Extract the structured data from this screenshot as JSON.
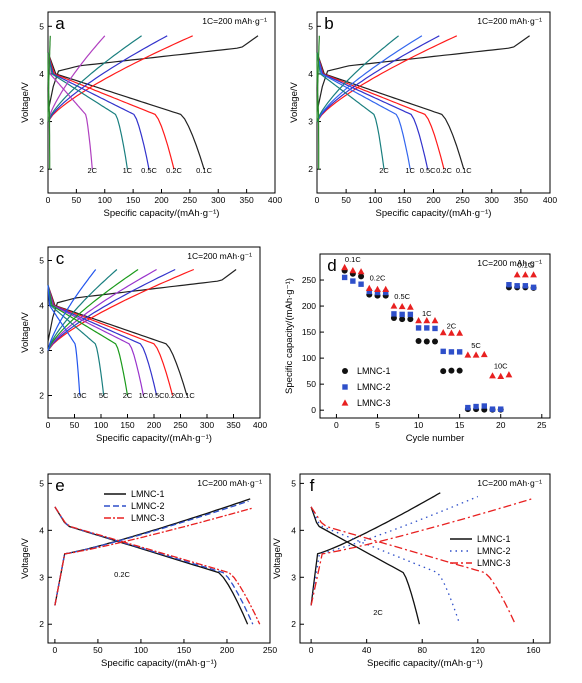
{
  "chart_data": [
    {
      "panel": "a",
      "type": "line",
      "note": "1C=200 mAh·g⁻¹",
      "xlabel": "Specific capacity/(mAh·g⁻¹)",
      "ylabel": "Voltage/V",
      "xlim": [
        0,
        400
      ],
      "ylim": [
        1.5,
        5.3
      ],
      "xticks": [
        "0",
        "50",
        "100",
        "150",
        "200",
        "250",
        "300",
        "350",
        "400"
      ],
      "yticks": [
        "2",
        "3",
        "4",
        "5"
      ],
      "rate_labels": [
        "2C",
        "1C",
        "0.5C",
        "0.2C",
        "0.1C"
      ],
      "series": [
        {
          "label": "0.1C",
          "color": "#222222",
          "charge_end": 370,
          "discharge_end": 275
        },
        {
          "label": "0.2C",
          "color": "#ff1a1a",
          "charge_end": 255,
          "discharge_end": 222
        },
        {
          "label": "0.5C",
          "color": "#3333cc",
          "charge_end": 210,
          "discharge_end": 178
        },
        {
          "label": "1C",
          "color": "#1a7f7f",
          "charge_end": 165,
          "discharge_end": 140
        },
        {
          "label": "2C",
          "color": "#b040c0",
          "charge_end": 100,
          "discharge_end": 78
        },
        {
          "label": "",
          "color": "#2a8a2a",
          "charge_end": 4,
          "discharge_end": 3
        }
      ]
    },
    {
      "panel": "b",
      "type": "line",
      "note": "1C=200 mAh·g⁻¹",
      "xlabel": "Specific capacity/(mAh·g⁻¹)",
      "ylabel": "Voltage/V",
      "xlim": [
        0,
        400
      ],
      "ylim": [
        1.5,
        5.3
      ],
      "xticks": [
        "0",
        "50",
        "100",
        "150",
        "200",
        "250",
        "300",
        "350",
        "400"
      ],
      "yticks": [
        "2",
        "3",
        "4",
        "5"
      ],
      "rate_labels": [
        "2C",
        "1C",
        "0.5C",
        "0.2C",
        "0.1C"
      ],
      "series": [
        {
          "label": "0.1C",
          "color": "#222222",
          "charge_end": 365,
          "discharge_end": 252
        },
        {
          "label": "0.2C",
          "color": "#ff1a1a",
          "charge_end": 240,
          "discharge_end": 218
        },
        {
          "label": "0.5C",
          "color": "#3333cc",
          "charge_end": 210,
          "discharge_end": 190
        },
        {
          "label": "1C",
          "color": "#3366ee",
          "charge_end": 180,
          "discharge_end": 160
        },
        {
          "label": "2C",
          "color": "#1a7f7f",
          "charge_end": 140,
          "discharge_end": 115
        },
        {
          "label": "",
          "color": "#2a8a2a",
          "charge_end": 4,
          "discharge_end": 3
        }
      ]
    },
    {
      "panel": "c",
      "type": "line",
      "note": "1C=200 mAh·g⁻¹",
      "xlabel": "Specific capacity/(mAh·g⁻¹)",
      "ylabel": "Voltage/V",
      "xlim": [
        0,
        400
      ],
      "ylim": [
        1.5,
        5.3
      ],
      "xticks": [
        "0",
        "50",
        "100",
        "150",
        "200",
        "250",
        "300",
        "350",
        "400"
      ],
      "yticks": [
        "2",
        "3",
        "4",
        "5"
      ],
      "rate_labels": [
        "10C",
        "5C",
        "2C",
        "1C",
        "0.5C",
        "0.2C",
        "0.1C"
      ],
      "series": [
        {
          "label": "0.1C",
          "color": "#222222",
          "charge_end": 355,
          "discharge_end": 262
        },
        {
          "label": "0.2C",
          "color": "#ff1a1a",
          "charge_end": 275,
          "discharge_end": 235
        },
        {
          "label": "0.5C",
          "color": "#3333cc",
          "charge_end": 240,
          "discharge_end": 205
        },
        {
          "label": "1C",
          "color": "#9933cc",
          "charge_end": 205,
          "discharge_end": 180
        },
        {
          "label": "2C",
          "color": "#1a9a1a",
          "charge_end": 170,
          "discharge_end": 150
        },
        {
          "label": "5C",
          "color": "#1a7f7f",
          "charge_end": 130,
          "discharge_end": 105
        },
        {
          "label": "10C",
          "color": "#2255ee",
          "charge_end": 90,
          "discharge_end": 60
        }
      ]
    },
    {
      "panel": "d",
      "type": "scatter",
      "note": "1C=200 mAh·g⁻¹",
      "xlabel": "Cycle number",
      "ylabel": "Specific capacity/(mAh·g⁻¹)",
      "xlim": [
        -2,
        26
      ],
      "ylim": [
        -15,
        300
      ],
      "xticks": [
        "0",
        "5",
        "10",
        "15",
        "20",
        "25"
      ],
      "xtick_values": [
        0,
        5,
        10,
        15,
        20,
        25
      ],
      "yticks": [
        "0",
        "50",
        "100",
        "150",
        "200",
        "250"
      ],
      "ytick_values": [
        0,
        50,
        100,
        150,
        200,
        250
      ],
      "rate_labels": [
        {
          "text": "0.1C",
          "x": 2,
          "y": 285
        },
        {
          "text": "0.2C",
          "x": 5,
          "y": 249
        },
        {
          "text": "0.5C",
          "x": 8,
          "y": 214
        },
        {
          "text": "1C",
          "x": 11,
          "y": 181
        },
        {
          "text": "2C",
          "x": 14,
          "y": 157
        },
        {
          "text": "5C",
          "x": 17,
          "y": 119
        },
        {
          "text": "10C",
          "x": 20,
          "y": 80
        },
        {
          "text": "0.1C",
          "x": 23,
          "y": 274
        }
      ],
      "legend_position": "left",
      "series": [
        {
          "name": "LMNC-1",
          "color": "#111111",
          "marker": "circle",
          "x": [
            1,
            2,
            3,
            4,
            5,
            6,
            7,
            8,
            9,
            10,
            11,
            12,
            13,
            14,
            15,
            16,
            17,
            18,
            19,
            20,
            21,
            22,
            23,
            24
          ],
          "y": [
            268,
            262,
            257,
            222,
            220,
            220,
            177,
            175,
            175,
            133,
            132,
            132,
            75,
            76,
            76,
            2,
            2,
            1,
            1,
            1,
            236,
            236,
            236,
            235
          ]
        },
        {
          "name": "LMNC-2",
          "color": "#2e4fc9",
          "marker": "square",
          "x": [
            1,
            2,
            3,
            4,
            5,
            6,
            7,
            8,
            9,
            10,
            11,
            12,
            13,
            14,
            15,
            16,
            17,
            18,
            19,
            20,
            21,
            22,
            23,
            24
          ],
          "y": [
            255,
            248,
            242,
            228,
            226,
            226,
            185,
            184,
            184,
            158,
            158,
            157,
            113,
            112,
            112,
            5,
            7,
            8,
            2,
            2,
            241,
            239,
            239,
            236
          ]
        },
        {
          "name": "LMNC-3",
          "color": "#e82020",
          "marker": "triangle",
          "x": [
            1,
            2,
            3,
            4,
            5,
            6,
            7,
            8,
            9,
            10,
            11,
            12,
            13,
            14,
            15,
            16,
            17,
            18,
            19,
            20,
            21,
            22,
            23,
            24
          ],
          "y": [
            274,
            268,
            266,
            234,
            232,
            232,
            200,
            199,
            198,
            172,
            172,
            172,
            149,
            148,
            148,
            106,
            106,
            107,
            66,
            65,
            68,
            260,
            260,
            260
          ]
        }
      ]
    },
    {
      "panel": "e",
      "type": "line",
      "note": "1C=200 mAh·g⁻¹",
      "xlabel": "Specific capacity/(mAh·g⁻¹)",
      "ylabel": "Voltage/V",
      "xlim": [
        -8,
        250
      ],
      "ylim": [
        1.6,
        5.2
      ],
      "xticks": [
        "0",
        "50",
        "100",
        "150",
        "200",
        "250"
      ],
      "xtick_values": [
        0,
        50,
        100,
        150,
        200,
        250
      ],
      "yticks": [
        "2",
        "3",
        "4",
        "5"
      ],
      "ytick_values": [
        2,
        3,
        4,
        5
      ],
      "rate_label": "0.2C",
      "legend_position": "top-left",
      "series": [
        {
          "name": "LMNC-1",
          "color": "#111111",
          "dash": "",
          "charge_end": 227,
          "charge_top": 4.67,
          "discharge_end": 224
        },
        {
          "name": "LMNC-2",
          "color": "#2e4fc9",
          "dash": "6,3",
          "charge_end": 225,
          "charge_top": 4.62,
          "discharge_end": 230
        },
        {
          "name": "LMNC-3",
          "color": "#e82020",
          "dash": "7,2,2,2",
          "charge_end": 229,
          "charge_top": 4.47,
          "discharge_end": 238
        }
      ]
    },
    {
      "panel": "f",
      "type": "line",
      "note": "1C=200 mAh·g⁻¹",
      "xlabel": "Specific capacity/(mAh·g⁻¹)",
      "ylabel": "Voltage/V",
      "xlim": [
        -8,
        172
      ],
      "ylim": [
        1.6,
        5.2
      ],
      "xticks": [
        "0",
        "40",
        "80",
        "120",
        "160"
      ],
      "xtick_values": [
        0,
        40,
        80,
        120,
        160
      ],
      "yticks": [
        "2",
        "3",
        "4",
        "5"
      ],
      "ytick_values": [
        2,
        3,
        4,
        5
      ],
      "rate_label": "2C",
      "legend_position": "right",
      "series": [
        {
          "name": "LMNC-1",
          "color": "#111111",
          "dash": "",
          "charge_end": 93,
          "charge_top": 4.8,
          "discharge_end": 78
        },
        {
          "name": "LMNC-2",
          "color": "#2e4fc9",
          "dash": "1.5,4",
          "charge_end": 120,
          "charge_top": 4.72,
          "discharge_end": 107
        },
        {
          "name": "LMNC-3",
          "color": "#e82020",
          "dash": "8,3,2,3",
          "charge_end": 160,
          "charge_top": 4.68,
          "discharge_end": 147
        }
      ]
    }
  ]
}
